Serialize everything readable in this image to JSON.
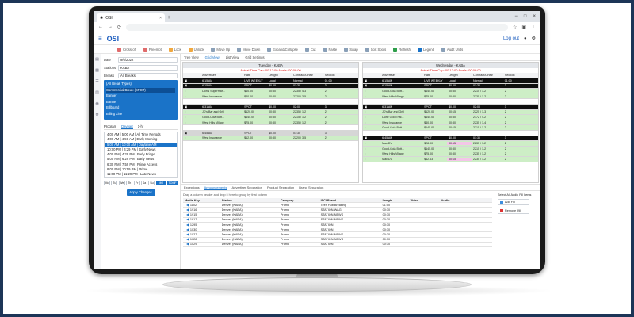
{
  "browser": {
    "tab_title": "OSI",
    "tab_close": "×",
    "new_tab": "+",
    "window_controls": [
      "−",
      "□",
      "×"
    ],
    "nav": [
      "←",
      "→",
      "⟳"
    ],
    "url_placeholder": ""
  },
  "app": {
    "brand": "OSI",
    "logout": "Log out"
  },
  "toolbar": [
    {
      "label": "Cross-off",
      "color": "#e06b6b"
    },
    {
      "label": "Preempt",
      "color": "#e06b6b"
    },
    {
      "label": "Lock",
      "color": "#f0a840"
    },
    {
      "label": "Unlock",
      "color": "#f0a840"
    },
    {
      "label": "Move Up",
      "color": "#8aa0b8"
    },
    {
      "label": "Move Down",
      "color": "#8aa0b8"
    },
    {
      "label": "Expand/Collapse",
      "color": "#8aa0b8"
    },
    {
      "label": "Cut",
      "color": "#8aa0b8"
    },
    {
      "label": "Paste",
      "color": "#8aa0b8"
    },
    {
      "label": "Swap",
      "color": "#8aa0b8"
    },
    {
      "label": "Sort Spots",
      "color": "#8aa0b8"
    },
    {
      "label": "Refresh",
      "color": "#2e9e4a"
    },
    {
      "label": "Legend",
      "color": "#1a73c8"
    },
    {
      "label": "Audit Units",
      "color": "#8aa0b8"
    }
  ],
  "left": {
    "date_label": "Date",
    "date_value": "9/6/2022",
    "stations_label": "Stations",
    "stations_value": "KABA",
    "breaks_label": "Breaks",
    "breaks_value": "All Breaks",
    "break_types": [
      "(All Break Types)",
      "Commercial Break (SPOT)",
      "Banner",
      "Banner",
      "Billboard",
      "Billing Line"
    ],
    "subtabs": [
      "Program",
      "Daypart",
      "1-hr"
    ],
    "dayparts": [
      "4:00 AM | 5:00 AM | All Time Periods",
      "4:00 AM | 4:59 AM | Early Morning",
      "5:00 AM | 10:00 AM | Daytime AM",
      "10:00 PM | 4:29 PM | Early News",
      "4:00 PM | 4:29 PM | Early Fringe",
      "5:00 PM | 6:29 PM | Early News",
      "6:30 PM | 7:59 PM | Prime Access",
      "8:00 PM | 10:59 PM | Prime",
      "11:00 PM | 11:29 PM | Late News"
    ],
    "days": [
      "Mo",
      "Tu",
      "We",
      "Th",
      "Fr",
      "Sa",
      "Su",
      "MO",
      "TOMF"
    ],
    "apply_label": "Apply Changes"
  },
  "viewtabs": [
    "Tree View",
    "Grid View",
    "List View",
    "Grid Settings"
  ],
  "grids": [
    {
      "title": "Tuesday - KABA",
      "subtitle": "Actual Time Cap: 00:12:00 Avails: 00:08:00",
      "headers": [
        "",
        "Advertiser",
        "Rate",
        "Length",
        "Contract/Line#",
        "Section"
      ],
      "rows": [
        {
          "type": "black",
          "cells": [
            "",
            "6:15 AM",
            "LIVE WEEKLY",
            "Local",
            "Normal",
            "01:00"
          ]
        },
        {
          "type": "black",
          "cells": [
            "",
            "6:15 AM",
            "SPOT",
            "$0.00",
            "01:30",
            "3"
          ]
        },
        {
          "type": "green",
          "cells": [
            "",
            "Don's Supermar...",
            "$10.00",
            "00:30",
            "2235 / 4-3",
            "2"
          ]
        },
        {
          "type": "green",
          "cells": [
            "",
            "West Insurance",
            "$40.00",
            "00:30",
            "2220 / 3-5",
            "2"
          ]
        },
        {
          "type": "blank",
          "cells": [
            "",
            "",
            "",
            "",
            "",
            ""
          ]
        },
        {
          "type": "black",
          "cells": [
            "",
            "6:31 AM",
            "SPOT",
            "$0.00",
            "02:00",
            "3"
          ]
        },
        {
          "type": "green",
          "cells": [
            "",
            "JD's Bar and Grill",
            "$120.00",
            "00:30",
            "2235 / 1-2",
            "2"
          ]
        },
        {
          "type": "green",
          "cells": [
            "",
            "Good-Cola Bott...",
            "$145.00",
            "00:30",
            "2215 / 1-2",
            "2"
          ]
        },
        {
          "type": "green",
          "cells": [
            "",
            "West Hills Village",
            "$75.00",
            "00:30",
            "2235 / 1-2",
            "2"
          ]
        },
        {
          "type": "blank",
          "cells": [
            "",
            "",
            "",
            "",
            "",
            ""
          ]
        },
        {
          "type": "grey",
          "cells": [
            "",
            "6:45 AM",
            "SPOT",
            "$0.00",
            "01:30",
            "3"
          ]
        },
        {
          "type": "green",
          "cells": [
            "",
            "West Insurance",
            "$12.00",
            "00:30",
            "2220 / 3-5",
            "2"
          ]
        }
      ]
    },
    {
      "title": "Wednesday - KABA",
      "subtitle": "Actual Time Cap: 00:12:00 Avails: 00:08:00",
      "headers": [
        "",
        "Advertiser",
        "Rate",
        "Length",
        "Contract/Line#",
        "Section"
      ],
      "rows": [
        {
          "type": "black",
          "cells": [
            "",
            "6:15 AM",
            "LIVE WEEKLY",
            "Local",
            "Normal",
            "01:00"
          ]
        },
        {
          "type": "black",
          "cells": [
            "",
            "6:15 AM",
            "SPOT",
            "$0.00",
            "01:30",
            "3"
          ]
        },
        {
          "type": "green",
          "cells": [
            "",
            "Good-Cola Bott...",
            "$145.00",
            "00:30",
            "2215 / 1-2",
            "2"
          ]
        },
        {
          "type": "green",
          "cells": [
            "",
            "West Hills Village",
            "$75.00",
            "00:30",
            "2235 / 1-2",
            "2"
          ]
        },
        {
          "type": "blank",
          "cells": [
            "",
            "",
            "",
            "",
            "",
            ""
          ]
        },
        {
          "type": "black",
          "cells": [
            "",
            "6:31 AM",
            "SPOT",
            "$0.00",
            "02:00",
            "3"
          ]
        },
        {
          "type": "green",
          "cells": [
            "",
            "JD's Bar and Grill",
            "$120.00",
            "00:15",
            "2225 / 1-3",
            "2"
          ]
        },
        {
          "type": "green",
          "cells": [
            "",
            "Dune Good Fai...",
            "$145.00",
            "00:30",
            "2172 / 4-2",
            "2"
          ]
        },
        {
          "type": "green",
          "cells": [
            "",
            "West Insurance",
            "$40.00",
            "00:30",
            "2235 / 1-4",
            "2"
          ]
        },
        {
          "type": "green",
          "cells": [
            "",
            "Good-Cola Bott...",
            "$145.00",
            "00:15",
            "2215 / 1-2",
            "2"
          ]
        },
        {
          "type": "blank",
          "cells": [
            "",
            "",
            "",
            "",
            "",
            ""
          ]
        },
        {
          "type": "black",
          "cells": [
            "",
            "6:45 AM",
            "SPOT",
            "$0.00",
            "01:30",
            "3"
          ]
        },
        {
          "type": "pink",
          "cells": [
            "",
            "Mac D's",
            "$28.00",
            "00:15",
            "2235 / 1-2",
            "2"
          ]
        },
        {
          "type": "green",
          "cells": [
            "",
            "Good-Cola Bott...",
            "$145.00",
            "00:30",
            "2215 / 1-2",
            "2"
          ]
        },
        {
          "type": "green",
          "cells": [
            "",
            "West Hills Village",
            "$75.00",
            "00:30",
            "2235 / 1-2",
            "2"
          ]
        },
        {
          "type": "pink",
          "cells": [
            "",
            "Mac D's",
            "$12.63",
            "00:15",
            "2235 / 1-2",
            "2"
          ]
        }
      ]
    }
  ],
  "bottom": {
    "tabs": [
      "Exceptions",
      "Announcements",
      "Advertiser Separation",
      "Product Separation",
      "Brand Separation"
    ],
    "drag_note": "Drag a column header and drop it here to group by that column",
    "headers": [
      "Media Key",
      "Station",
      "Category",
      "ISCI/Brand",
      "Length",
      "Video",
      "Audio"
    ],
    "rows": [
      [
        "1102",
        "Denver (KABA)",
        "Promo",
        "Teen Hub Breaking",
        "01:00",
        "",
        ""
      ],
      [
        "1916",
        "Denver (KABA)",
        "Promo",
        "STATION-WAG",
        "00:30",
        "",
        ""
      ],
      [
        "1915",
        "Denver (KABA)",
        "Promo",
        "STATION-NEWS",
        "00:30",
        "",
        ""
      ],
      [
        "1917",
        "Denver (KABA)",
        "Promo",
        "STATION-NEWS",
        "00:30",
        "",
        ""
      ],
      [
        "1295",
        "Denver (KABA)",
        "Promo",
        "STATION",
        "00:30",
        "",
        ""
      ],
      [
        "1030",
        "Denver (KABA)",
        "Promo",
        "STATION",
        "00:30",
        "",
        ""
      ],
      [
        "1027",
        "Denver (KABA)",
        "Promo",
        "STATION-NEWS",
        "00:30",
        "",
        ""
      ],
      [
        "1028",
        "Denver (KABA)",
        "Promo",
        "STATION-NEWS",
        "00:30",
        "",
        ""
      ],
      [
        "1029",
        "Denver (KABA)",
        "Promo",
        "STATION",
        "00:30",
        "",
        ""
      ]
    ],
    "side_title": "Select All Audio Fill Items",
    "add_label": "Add Fill",
    "remove_label": "Remove Fill"
  }
}
